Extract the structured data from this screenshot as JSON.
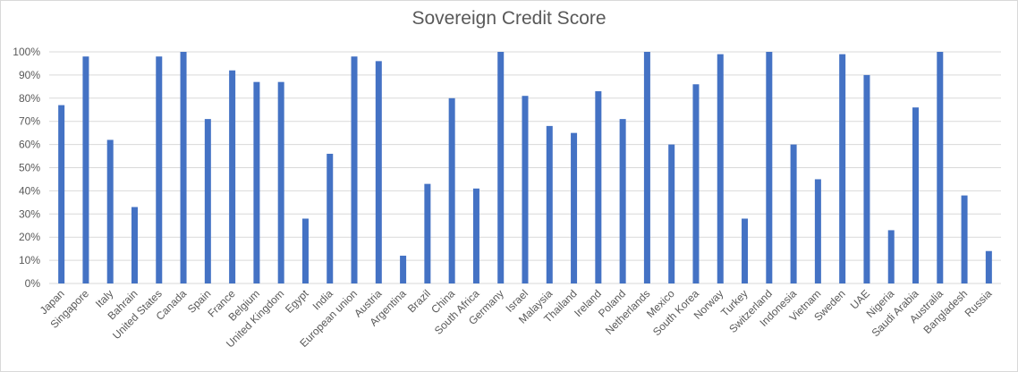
{
  "chart_data": {
    "type": "bar",
    "title": "Sovereign Credit Score",
    "xlabel": "",
    "ylabel": "",
    "ylim": [
      0,
      100
    ],
    "yticks": [
      "0%",
      "10%",
      "20%",
      "30%",
      "40%",
      "50%",
      "60%",
      "70%",
      "80%",
      "90%",
      "100%"
    ],
    "grid": true,
    "bar_color": "#4472C4",
    "categories": [
      "Japan",
      "Singapore",
      "Italy",
      "Bahrain",
      "United States",
      "Canada",
      "Spain",
      "France",
      "Belgium",
      "United Kingdom",
      "Egypt",
      "India",
      "European union",
      "Austria",
      "Argentina",
      "Brazil",
      "China",
      "South Africa",
      "Germany",
      "Israel",
      "Malaysia",
      "Thailand",
      "Ireland",
      "Poland",
      "Netherlands",
      "Mexico",
      "South Korea",
      "Norway",
      "Turkey",
      "Switzerland",
      "Indonesia",
      "Vietnam",
      "Sweden",
      "UAE",
      "Nigeria",
      "Saudi Arabia",
      "Australia",
      "Bangladesh",
      "Russia"
    ],
    "values": [
      77,
      98,
      62,
      33,
      98,
      100,
      71,
      92,
      87,
      87,
      28,
      56,
      98,
      96,
      12,
      43,
      80,
      41,
      100,
      81,
      68,
      65,
      83,
      71,
      100,
      60,
      86,
      99,
      28,
      100,
      60,
      45,
      99,
      90,
      23,
      76,
      100,
      38,
      14
    ]
  }
}
